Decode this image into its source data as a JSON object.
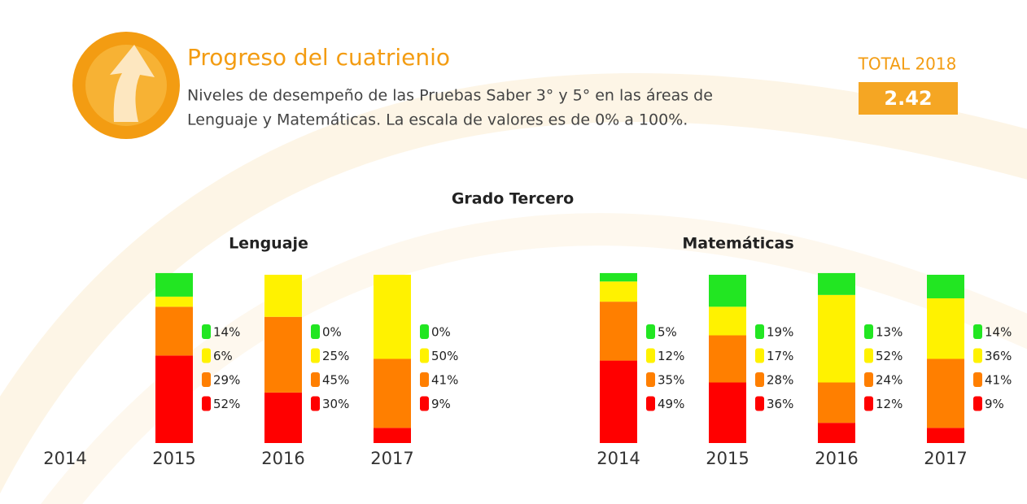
{
  "header": {
    "title": "Progreso del cuatrienio",
    "subtitle": [
      "Niveles de desempeño de las Pruebas Saber 3° y 5° en las áreas de",
      "Lenguaje y Matemáticas. La escala de valores es de 0% a 100%."
    ],
    "total_label": "TOTAL 2018",
    "total_value": "2.42"
  },
  "section_title": "Grado Tercero",
  "chart_data": [
    {
      "type": "bar",
      "stacked": true,
      "title": "Lenguaje",
      "categories": [
        "2014",
        "2015",
        "2016",
        "2017"
      ],
      "ylim": [
        0,
        100
      ],
      "series": [
        {
          "color": "#22e622",
          "values": [
            null,
            14,
            0,
            0
          ],
          "value_labels": [
            null,
            "14%",
            "0%",
            "0%"
          ]
        },
        {
          "color": "#fff200",
          "values": [
            null,
            6,
            25,
            50
          ],
          "value_labels": [
            null,
            "6%",
            "25%",
            "50%"
          ]
        },
        {
          "color": "#ff7f00",
          "values": [
            null,
            29,
            45,
            41
          ],
          "value_labels": [
            null,
            "29%",
            "45%",
            "41%"
          ]
        },
        {
          "color": "#ff0000",
          "values": [
            null,
            52,
            30,
            9
          ],
          "value_labels": [
            null,
            "52%",
            "30%",
            "9%"
          ]
        }
      ]
    },
    {
      "type": "bar",
      "stacked": true,
      "title": "Matemáticas",
      "categories": [
        "2014",
        "2015",
        "2016",
        "2017"
      ],
      "ylim": [
        0,
        100
      ],
      "series": [
        {
          "color": "#22e622",
          "values": [
            5,
            19,
            13,
            14
          ],
          "value_labels": [
            "5%",
            "19%",
            "13%",
            "14%"
          ]
        },
        {
          "color": "#fff200",
          "values": [
            12,
            17,
            52,
            36
          ],
          "value_labels": [
            "12%",
            "17%",
            "52%",
            "36%"
          ]
        },
        {
          "color": "#ff7f00",
          "values": [
            35,
            28,
            24,
            41
          ],
          "value_labels": [
            "35%",
            "28%",
            "24%",
            "41%"
          ]
        },
        {
          "color": "#ff0000",
          "values": [
            49,
            36,
            12,
            9
          ],
          "value_labels": [
            "49%",
            "36%",
            "12%",
            "9%"
          ]
        }
      ]
    }
  ]
}
